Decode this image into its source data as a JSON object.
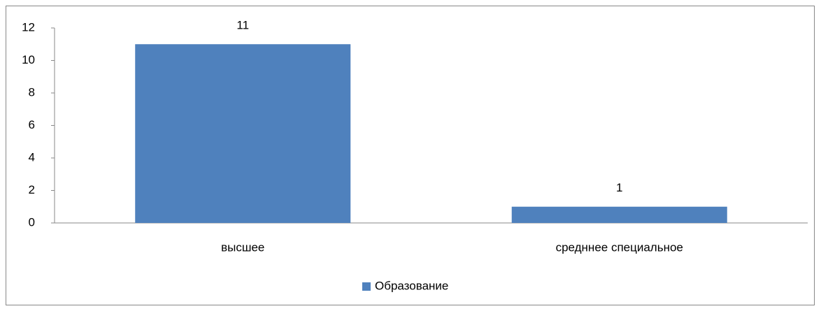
{
  "chart_data": {
    "type": "bar",
    "categories": [
      "высшее",
      "средннее специальное"
    ],
    "series": [
      {
        "name": "Образование",
        "color": "#4f81bd",
        "values": [
          11,
          1
        ]
      }
    ],
    "ylim": [
      0,
      12
    ],
    "yticks": [
      0,
      2,
      4,
      6,
      8,
      10,
      12
    ],
    "grid": false,
    "data_labels": true,
    "legend": "bottom"
  }
}
